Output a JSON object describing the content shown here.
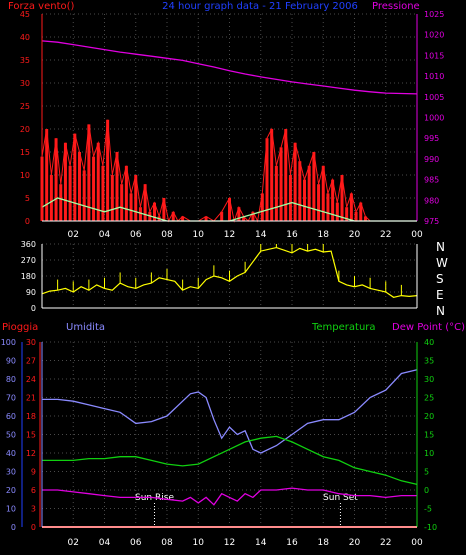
{
  "colors": {
    "red": "#ff1a1a",
    "magenta": "#e000e0",
    "blue": "#2040ff",
    "periwinkle": "#8a8aff",
    "green": "#10d010",
    "yellow": "#ffff00",
    "white": "#ffffff",
    "lightgreen": "#a0ffa0"
  },
  "chart_data": [
    {
      "type": "line",
      "id": "wind-pressure",
      "title": "24 hour graph data - 21 February 2006",
      "left_axis_label": "Forza vento()",
      "right_axis_label": "Pressione",
      "left_ticks": [
        "0",
        "5",
        "10",
        "15",
        "20",
        "25",
        "30",
        "35",
        "40",
        "45"
      ],
      "right_ticks": [
        "975",
        "980",
        "985",
        "990",
        "995",
        "1000",
        "1005",
        "1010",
        "1015",
        "1020",
        "1025"
      ],
      "x_ticks": [
        "02",
        "04",
        "06",
        "08",
        "10",
        "12",
        "14",
        "16",
        "18",
        "20",
        "22",
        "00"
      ],
      "ylim_left": [
        0,
        45
      ],
      "ylim_right": [
        975,
        1025
      ],
      "x_range_hours": [
        0,
        24
      ],
      "series": [
        {
          "name": "Pressione",
          "axis": "right",
          "x": [
            0,
            1,
            2,
            3,
            4,
            5,
            6,
            7,
            8,
            9,
            10,
            11,
            12,
            13,
            14,
            15,
            16,
            17,
            18,
            19,
            20,
            21,
            22,
            23,
            24
          ],
          "values": [
            1018.5,
            1018.2,
            1017.6,
            1017.0,
            1016.4,
            1015.8,
            1015.3,
            1014.8,
            1014.3,
            1013.8,
            1013.0,
            1012.2,
            1011.3,
            1010.5,
            1009.8,
            1009.2,
            1008.6,
            1008.1,
            1007.6,
            1007.1,
            1006.6,
            1006.2,
            1005.9,
            1005.8,
            1005.7
          ]
        },
        {
          "name": "wind-gust",
          "axis": "left",
          "x": [
            0,
            0.3,
            0.6,
            0.9,
            1.2,
            1.5,
            1.8,
            2.1,
            2.4,
            2.7,
            3.0,
            3.3,
            3.6,
            3.9,
            4.2,
            4.5,
            4.8,
            5.1,
            5.4,
            5.7,
            6.0,
            6.3,
            6.6,
            6.9,
            7.2,
            7.5,
            7.8,
            8.1,
            8.4,
            8.7,
            9.0,
            9.5,
            10.0,
            10.5,
            11.0,
            11.5,
            12.0,
            12.3,
            12.6,
            12.9,
            13.2,
            13.5,
            13.8,
            14.1,
            14.4,
            14.7,
            15.0,
            15.3,
            15.6,
            15.9,
            16.2,
            16.5,
            16.8,
            17.1,
            17.4,
            17.7,
            18.0,
            18.3,
            18.6,
            18.9,
            19.2,
            19.5,
            19.8,
            20.1,
            20.4,
            20.7,
            21.0,
            22.0,
            23.0,
            24.0
          ],
          "values": [
            14,
            20,
            10,
            18,
            8,
            17,
            12,
            19,
            15,
            11,
            21,
            14,
            17,
            12,
            22,
            10,
            15,
            8,
            12,
            6,
            10,
            3,
            8,
            2,
            4,
            1,
            5,
            0,
            2,
            0,
            1,
            0,
            0,
            1,
            0,
            2,
            5,
            0,
            3,
            1,
            0,
            2,
            0,
            6,
            18,
            20,
            12,
            16,
            20,
            10,
            17,
            13,
            9,
            12,
            15,
            8,
            12,
            6,
            9,
            4,
            10,
            3,
            6,
            2,
            4,
            1,
            0,
            0,
            0,
            0
          ]
        },
        {
          "name": "wind-avg",
          "axis": "left",
          "x": [
            0,
            1,
            2,
            3,
            4,
            5,
            6,
            7,
            8,
            9,
            10,
            11,
            12,
            13,
            14,
            15,
            16,
            17,
            18,
            19,
            20,
            21,
            22,
            23,
            24
          ],
          "values": [
            3,
            5,
            4,
            3,
            2,
            3,
            2,
            1,
            0,
            0,
            0,
            0,
            0,
            1,
            2,
            3,
            4,
            3,
            2,
            1,
            0,
            0,
            0,
            0,
            0
          ]
        }
      ]
    },
    {
      "type": "line",
      "id": "wind-direction",
      "right_labels": [
        "N",
        "W",
        "S",
        "E",
        "N"
      ],
      "left_ticks": [
        "0",
        "90",
        "180",
        "270",
        "360"
      ],
      "ylim": [
        0,
        360
      ],
      "series": [
        {
          "name": "direction",
          "x": [
            0,
            0.5,
            1,
            1.5,
            2,
            2.5,
            3,
            3.5,
            4,
            4.5,
            5,
            5.5,
            6,
            6.5,
            7,
            7.5,
            8,
            8.5,
            9,
            9.5,
            10,
            10.5,
            11,
            11.5,
            12,
            12.5,
            13,
            13.5,
            14,
            14.5,
            15,
            15.5,
            16,
            16.5,
            17,
            17.5,
            18,
            18.5,
            19,
            19.5,
            20,
            20.5,
            21,
            21.5,
            22,
            22.5,
            23,
            23.5,
            24
          ],
          "values": [
            80,
            95,
            100,
            110,
            90,
            120,
            100,
            130,
            110,
            100,
            140,
            120,
            110,
            130,
            140,
            170,
            160,
            150,
            100,
            120,
            110,
            160,
            180,
            170,
            150,
            180,
            200,
            260,
            320,
            330,
            340,
            325,
            310,
            335,
            320,
            330,
            315,
            320,
            150,
            130,
            120,
            130,
            110,
            100,
            90,
            60,
            70,
            65,
            70
          ]
        }
      ]
    },
    {
      "type": "line",
      "id": "temperature-humidity",
      "labels": {
        "rain": "Pioggia",
        "humidity": "Umidita",
        "temperature": "Temperatura",
        "dew": "Dew Point (°C)"
      },
      "humidity_ticks": [
        "0",
        "10",
        "20",
        "30",
        "40",
        "50",
        "60",
        "70",
        "80",
        "90",
        "100"
      ],
      "rain_ticks": [
        "0",
        "3",
        "6",
        "9",
        "12",
        "15",
        "18",
        "21",
        "24",
        "27",
        "30"
      ],
      "temp_ticks": [
        "-10",
        "-5",
        "0",
        "5",
        "10",
        "15",
        "20",
        "25",
        "30",
        "35",
        "40"
      ],
      "x_ticks": [
        "02",
        "04",
        "06",
        "08",
        "10",
        "12",
        "14",
        "16",
        "18",
        "20",
        "22",
        "00"
      ],
      "annotations": [
        {
          "text": "Sun Rise",
          "x": 7.2
        },
        {
          "text": "Sun Set",
          "x": 19.1
        }
      ],
      "ylim_temp": [
        -10,
        40
      ],
      "ylim_humidity": [
        0,
        100
      ],
      "ylim_rain": [
        0,
        30
      ],
      "series": [
        {
          "name": "Umidita",
          "axis": "humidity",
          "x": [
            0,
            1,
            2,
            3,
            4,
            5,
            6,
            7,
            8,
            9,
            9.5,
            10,
            10.5,
            11,
            11.5,
            12,
            12.5,
            13,
            13.5,
            14,
            15,
            16,
            17,
            18,
            19,
            20,
            21,
            22,
            23,
            24
          ],
          "values": [
            69,
            69,
            68,
            66,
            64,
            62,
            56,
            57,
            60,
            68,
            72,
            73,
            70,
            58,
            48,
            54,
            50,
            52,
            42,
            40,
            44,
            50,
            56,
            58,
            58,
            62,
            70,
            74,
            83,
            85
          ]
        },
        {
          "name": "Temperatura",
          "axis": "temp",
          "x": [
            0,
            1,
            2,
            3,
            4,
            5,
            6,
            7,
            8,
            9,
            10,
            11,
            12,
            13,
            14,
            15,
            16,
            17,
            18,
            19,
            20,
            21,
            22,
            23,
            24
          ],
          "values": [
            8,
            8,
            8,
            8.5,
            8.5,
            9,
            9,
            8,
            7,
            6.5,
            7,
            9,
            11,
            13,
            14,
            14.5,
            13,
            11,
            9,
            8,
            6,
            5,
            4,
            2.5,
            1.5
          ]
        },
        {
          "name": "Dew Point",
          "axis": "temp",
          "x": [
            0,
            1,
            2,
            3,
            4,
            5,
            6,
            7,
            8,
            9,
            9.5,
            10,
            10.5,
            11,
            11.5,
            12,
            12.5,
            13,
            13.5,
            14,
            15,
            16,
            17,
            18,
            19,
            20,
            21,
            22,
            23,
            24
          ],
          "values": [
            0,
            0,
            -0.5,
            -1,
            -1.5,
            -2,
            -2,
            -2,
            -2.5,
            -3,
            -2,
            -3.5,
            -2,
            -4,
            -1,
            -2,
            -3,
            -1,
            -2,
            0,
            0,
            0.5,
            0,
            0,
            -1,
            -1.5,
            -1.5,
            -2,
            -1.5,
            -1.5
          ]
        },
        {
          "name": "Pioggia",
          "axis": "rain",
          "x": [
            0,
            24
          ],
          "values": [
            0,
            0
          ]
        }
      ]
    }
  ]
}
